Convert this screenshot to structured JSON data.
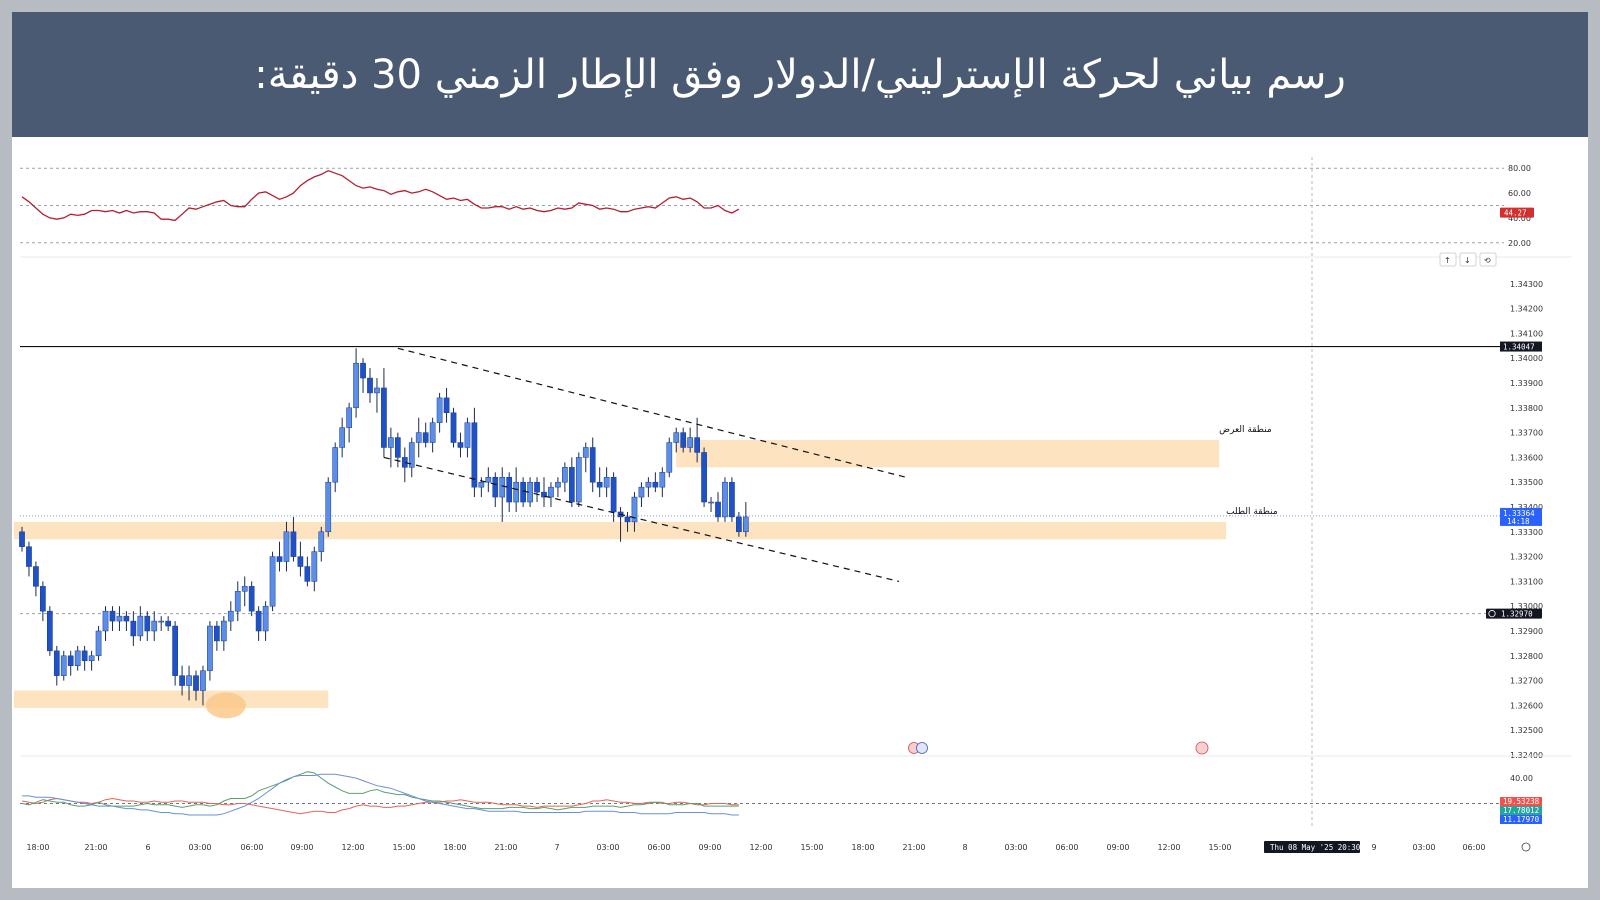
{
  "header": {
    "title": "رسم بياني لحركة الإسترليني/الدولار وفق الإطار الزمني 30 دقيقة:"
  },
  "colors": {
    "header_bg": "#4b5a73",
    "bull": "#5b8ee8",
    "bear": "#1f52c7",
    "rsi_line": "#b3202f",
    "zone": "#fde3bf",
    "last_price_tag": "#2962ff"
  },
  "chart_data": [
    {
      "type": "line",
      "name_panel": "rsi",
      "x_range": [
        0,
        103
      ],
      "ylim": [
        15,
        85
      ],
      "y_ticks": [
        "80.00",
        "60.00",
        "40.00",
        "20.00"
      ],
      "levels": [
        80,
        50,
        20
      ],
      "current_value": "44.27",
      "values": [
        57,
        53,
        48,
        43,
        40,
        39,
        40,
        43,
        42,
        43,
        46,
        46,
        45,
        46,
        44,
        46,
        44,
        45,
        45,
        44,
        39,
        39,
        38,
        43,
        48,
        47,
        49,
        51,
        53,
        54,
        50,
        49,
        49,
        55,
        60,
        61,
        58,
        55,
        57,
        60,
        66,
        70,
        73,
        75,
        78,
        76,
        74,
        70,
        66,
        64,
        65,
        63,
        62,
        59,
        61,
        62,
        60,
        61,
        63,
        61,
        58,
        55,
        56,
        54,
        55,
        51,
        48,
        48,
        49,
        49,
        47,
        49,
        47,
        48,
        46,
        45,
        46,
        48,
        47,
        48,
        52,
        51,
        50,
        47,
        48,
        47,
        45,
        45,
        47,
        48,
        49,
        48,
        52,
        56,
        57,
        55,
        56,
        53,
        48,
        48,
        50,
        46,
        44,
        47
      ]
    },
    {
      "type": "candlestick",
      "name_panel": "price",
      "ylim": [
        1.324,
        1.344
      ],
      "y_ticks": [
        "1.34300",
        "1.34200",
        "1.34100",
        "1.34000",
        "1.33900",
        "1.33800",
        "1.33700",
        "1.33600",
        "1.33500",
        "1.33400",
        "1.33300",
        "1.33200",
        "1.33100",
        "1.33000",
        "1.32900",
        "1.32800",
        "1.32700",
        "1.32600",
        "1.32500",
        "1.32400"
      ],
      "x_ticks": [
        "18:00",
        "21:00",
        "6",
        "03:00",
        "06:00",
        "09:00",
        "12:00",
        "15:00",
        "18:00",
        "21:00",
        "7",
        "03:00",
        "06:00",
        "09:00",
        "12:00",
        "15:00",
        "18:00",
        "21:00",
        "8",
        "03:00",
        "06:00",
        "09:00",
        "12:00",
        "15:00",
        "Thu 08 May '25  20:30",
        "9",
        "03:00",
        "06:00"
      ],
      "horizontal_line": 1.34047,
      "horizontal_line_label": "1.34047",
      "crosshair_price_label": "1.32970",
      "last_price": "1.33364",
      "countdown": "14:18",
      "ohlc": [
        [
          1.333,
          1.3332,
          1.3322,
          1.3324
        ],
        [
          1.3324,
          1.3326,
          1.3312,
          1.3316
        ],
        [
          1.3316,
          1.3318,
          1.3304,
          1.3308
        ],
        [
          1.3308,
          1.331,
          1.3294,
          1.3298
        ],
        [
          1.3298,
          1.33,
          1.328,
          1.3282
        ],
        [
          1.3282,
          1.3284,
          1.3268,
          1.3272
        ],
        [
          1.3272,
          1.3282,
          1.327,
          1.328
        ],
        [
          1.328,
          1.3282,
          1.3272,
          1.3276
        ],
        [
          1.3276,
          1.3284,
          1.3274,
          1.3282
        ],
        [
          1.3282,
          1.3284,
          1.3274,
          1.3278
        ],
        [
          1.3278,
          1.3282,
          1.3274,
          1.328
        ],
        [
          1.328,
          1.3292,
          1.3278,
          1.329
        ],
        [
          1.329,
          1.33,
          1.3286,
          1.3298
        ],
        [
          1.3298,
          1.33,
          1.329,
          1.3294
        ],
        [
          1.3294,
          1.33,
          1.329,
          1.3296
        ],
        [
          1.3296,
          1.3298,
          1.329,
          1.3294
        ],
        [
          1.3294,
          1.3298,
          1.3284,
          1.3288
        ],
        [
          1.3288,
          1.33,
          1.3286,
          1.3296
        ],
        [
          1.3296,
          1.3298,
          1.3286,
          1.329
        ],
        [
          1.329,
          1.3298,
          1.3286,
          1.3294
        ],
        [
          1.3294,
          1.3296,
          1.329,
          1.3294
        ],
        [
          1.3294,
          1.3296,
          1.329,
          1.3292
        ],
        [
          1.3292,
          1.3294,
          1.3268,
          1.3272
        ],
        [
          1.3272,
          1.3276,
          1.3264,
          1.3268
        ],
        [
          1.3268,
          1.3276,
          1.3262,
          1.3272
        ],
        [
          1.3272,
          1.3274,
          1.3262,
          1.3266
        ],
        [
          1.3266,
          1.3276,
          1.326,
          1.3274
        ],
        [
          1.3274,
          1.3294,
          1.327,
          1.3292
        ],
        [
          1.3292,
          1.3294,
          1.3282,
          1.3286
        ],
        [
          1.3286,
          1.3296,
          1.3282,
          1.3294
        ],
        [
          1.3294,
          1.3302,
          1.329,
          1.3298
        ],
        [
          1.3298,
          1.331,
          1.3294,
          1.3306
        ],
        [
          1.3306,
          1.3312,
          1.33,
          1.3308
        ],
        [
          1.3308,
          1.331,
          1.3296,
          1.3298
        ],
        [
          1.3298,
          1.33,
          1.3286,
          1.329
        ],
        [
          1.329,
          1.3302,
          1.3286,
          1.33
        ],
        [
          1.33,
          1.3322,
          1.3298,
          1.332
        ],
        [
          1.332,
          1.3326,
          1.3314,
          1.3318
        ],
        [
          1.3318,
          1.3334,
          1.3314,
          1.333
        ],
        [
          1.333,
          1.3336,
          1.3318,
          1.332
        ],
        [
          1.332,
          1.3326,
          1.3312,
          1.3316
        ],
        [
          1.3316,
          1.332,
          1.3308,
          1.331
        ],
        [
          1.331,
          1.3324,
          1.3306,
          1.3322
        ],
        [
          1.3322,
          1.3332,
          1.3318,
          1.333
        ],
        [
          1.333,
          1.3352,
          1.3328,
          1.335
        ],
        [
          1.335,
          1.3366,
          1.3346,
          1.3364
        ],
        [
          1.3364,
          1.3376,
          1.336,
          1.3372
        ],
        [
          1.3372,
          1.3382,
          1.3366,
          1.338
        ],
        [
          1.338,
          1.3404,
          1.3376,
          1.3398
        ],
        [
          1.3398,
          1.34,
          1.3386,
          1.3392
        ],
        [
          1.3392,
          1.3396,
          1.3382,
          1.3386
        ],
        [
          1.3386,
          1.3392,
          1.3378,
          1.3388
        ],
        [
          1.3388,
          1.3396,
          1.336,
          1.3364
        ],
        [
          1.3364,
          1.3372,
          1.3356,
          1.3368
        ],
        [
          1.3368,
          1.337,
          1.3356,
          1.336
        ],
        [
          1.336,
          1.3364,
          1.335,
          1.3356
        ],
        [
          1.3356,
          1.3368,
          1.3352,
          1.3366
        ],
        [
          1.3366,
          1.3376,
          1.336,
          1.337
        ],
        [
          1.337,
          1.3374,
          1.3364,
          1.3366
        ],
        [
          1.3366,
          1.3376,
          1.3362,
          1.3374
        ],
        [
          1.3374,
          1.3386,
          1.337,
          1.3384
        ],
        [
          1.3384,
          1.3388,
          1.3374,
          1.3378
        ],
        [
          1.3378,
          1.338,
          1.3364,
          1.3366
        ],
        [
          1.3366,
          1.337,
          1.336,
          1.3364
        ],
        [
          1.3364,
          1.3376,
          1.336,
          1.3374
        ],
        [
          1.3374,
          1.338,
          1.3344,
          1.3348
        ],
        [
          1.3348,
          1.3352,
          1.3344,
          1.335
        ],
        [
          1.335,
          1.3356,
          1.3346,
          1.3352
        ],
        [
          1.3352,
          1.3354,
          1.334,
          1.3344
        ],
        [
          1.3344,
          1.3356,
          1.3334,
          1.3352
        ],
        [
          1.3352,
          1.3354,
          1.3338,
          1.3342
        ],
        [
          1.3342,
          1.3356,
          1.3338,
          1.335
        ],
        [
          1.335,
          1.3352,
          1.334,
          1.3342
        ],
        [
          1.3342,
          1.3352,
          1.334,
          1.335
        ],
        [
          1.335,
          1.3352,
          1.3342,
          1.3346
        ],
        [
          1.3346,
          1.3352,
          1.334,
          1.3344
        ],
        [
          1.3344,
          1.335,
          1.334,
          1.3348
        ],
        [
          1.3348,
          1.3352,
          1.3344,
          1.335
        ],
        [
          1.335,
          1.3358,
          1.3346,
          1.3356
        ],
        [
          1.3356,
          1.336,
          1.334,
          1.3342
        ],
        [
          1.3342,
          1.3362,
          1.334,
          1.336
        ],
        [
          1.336,
          1.3366,
          1.3354,
          1.3364
        ],
        [
          1.3364,
          1.3368,
          1.3346,
          1.335
        ],
        [
          1.335,
          1.3356,
          1.3344,
          1.3348
        ],
        [
          1.3348,
          1.3356,
          1.3344,
          1.3352
        ],
        [
          1.3352,
          1.3354,
          1.3334,
          1.3338
        ],
        [
          1.3338,
          1.334,
          1.3326,
          1.3336
        ],
        [
          1.3336,
          1.3338,
          1.333,
          1.3334
        ],
        [
          1.3334,
          1.3346,
          1.333,
          1.3344
        ],
        [
          1.3344,
          1.335,
          1.334,
          1.3348
        ],
        [
          1.3348,
          1.3352,
          1.3344,
          1.335
        ],
        [
          1.335,
          1.3354,
          1.3346,
          1.3348
        ],
        [
          1.3348,
          1.3356,
          1.3344,
          1.3354
        ],
        [
          1.3354,
          1.3368,
          1.3352,
          1.3366
        ],
        [
          1.3366,
          1.3372,
          1.3362,
          1.337
        ],
        [
          1.337,
          1.3372,
          1.3362,
          1.3364
        ],
        [
          1.3364,
          1.3372,
          1.3362,
          1.3368
        ],
        [
          1.3368,
          1.3376,
          1.3358,
          1.3362
        ],
        [
          1.3362,
          1.3364,
          1.334,
          1.3342
        ],
        [
          1.3342,
          1.3344,
          1.3338,
          1.3342
        ],
        [
          1.3342,
          1.3346,
          1.3334,
          1.3336
        ],
        [
          1.3336,
          1.3352,
          1.3334,
          1.335
        ],
        [
          1.335,
          1.3352,
          1.3334,
          1.3336
        ],
        [
          1.3336,
          1.3338,
          1.3328,
          1.333
        ],
        [
          1.333,
          1.3342,
          1.3328,
          1.3336
        ]
      ],
      "zones": [
        {
          "label": "منطقة العرض",
          "from": 1.3356,
          "to": 1.3367,
          "x_start": 94,
          "x_end": 172
        },
        {
          "label": "منطقة الطلب",
          "from": 1.3327,
          "to": 1.3334,
          "x_start": 0,
          "x_end": 173
        },
        {
          "label": "",
          "from": 1.3259,
          "to": 1.3266,
          "x_start": 0,
          "x_end": 44
        }
      ],
      "channel_lines": [
        {
          "x1": 54,
          "y1": 1.3404,
          "x2": 127,
          "y2": 1.3352
        },
        {
          "x1": 52,
          "y1": 1.336,
          "x2": 126,
          "y2": 1.331
        }
      ]
    },
    {
      "type": "line",
      "name_panel": "dmi",
      "ylim": [
        0,
        55
      ],
      "y_ticks": [
        "40.00"
      ],
      "level": 20,
      "value_labels": [
        "19.53238",
        "17.78012",
        "11.17970"
      ],
      "series": [
        {
          "color": "#e0655e",
          "values": [
            22,
            21,
            20,
            21,
            23,
            24,
            23,
            22,
            21,
            21,
            20,
            21,
            23,
            24,
            23,
            22,
            22,
            21,
            21,
            22,
            21,
            21,
            22,
            22,
            21,
            21,
            21,
            20,
            20,
            19,
            19,
            20,
            20,
            19,
            18,
            17,
            16,
            15,
            14,
            13,
            12,
            13,
            14,
            14,
            13,
            13,
            15,
            16,
            18,
            19,
            18,
            18,
            17,
            17,
            18,
            18,
            19,
            20,
            21,
            21,
            21,
            22,
            22,
            23,
            22,
            21,
            21,
            21,
            20,
            19,
            19,
            19,
            18,
            18,
            17,
            18,
            18,
            18,
            18,
            18,
            19,
            20,
            22,
            22,
            23,
            22,
            21,
            21,
            20,
            20,
            21,
            21,
            20,
            20,
            21,
            21,
            20,
            19,
            19,
            20,
            20,
            20,
            19,
            19
          ]
        },
        {
          "color": "#5d9e6e",
          "values": [
            20,
            19,
            21,
            23,
            22,
            21,
            21,
            19,
            18,
            18,
            19,
            21,
            19,
            18,
            18,
            18,
            18,
            19,
            20,
            19,
            19,
            19,
            18,
            17,
            18,
            19,
            19,
            18,
            19,
            22,
            24,
            24,
            24,
            26,
            30,
            32,
            34,
            36,
            38,
            41,
            43,
            45,
            44,
            40,
            36,
            33,
            30,
            28,
            28,
            28,
            30,
            31,
            29,
            28,
            27,
            27,
            25,
            24,
            23,
            22,
            22,
            21,
            20,
            19,
            18,
            17,
            16,
            16,
            16,
            16,
            17,
            17,
            17,
            16,
            16,
            17,
            16,
            15,
            16,
            17,
            17,
            17,
            18,
            18,
            18,
            18,
            17,
            18,
            19,
            19,
            20,
            21,
            21,
            19,
            19,
            19,
            20,
            20,
            18,
            18,
            18,
            18,
            18,
            18
          ]
        },
        {
          "color": "#6b8fd6",
          "values": [
            26,
            26,
            25,
            25,
            25,
            24,
            23,
            22,
            21,
            20,
            19,
            18,
            18,
            18,
            17,
            16,
            16,
            15,
            15,
            14,
            13,
            13,
            12,
            12,
            11,
            11,
            11,
            11,
            11,
            12,
            14,
            16,
            18,
            21,
            24,
            28,
            32,
            36,
            39,
            41,
            42,
            42,
            42,
            43,
            43,
            43,
            42,
            41,
            40,
            38,
            36,
            34,
            33,
            32,
            30,
            28,
            26,
            24,
            22,
            21,
            20,
            19,
            18,
            17,
            16,
            16,
            15,
            14,
            14,
            14,
            14,
            14,
            13,
            13,
            13,
            13,
            13,
            13,
            13,
            13,
            13,
            14,
            14,
            14,
            14,
            14,
            13,
            13,
            13,
            12,
            12,
            12,
            12,
            12,
            13,
            13,
            13,
            13,
            13,
            12,
            12,
            12,
            11,
            11
          ]
        }
      ]
    }
  ]
}
